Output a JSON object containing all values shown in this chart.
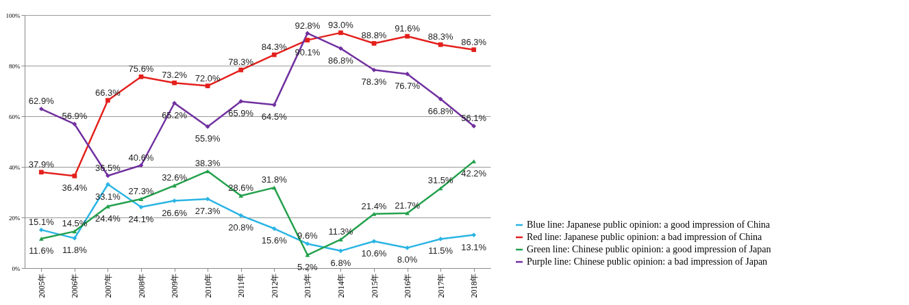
{
  "chart_data": {
    "type": "line",
    "categories": [
      "2005年",
      "2006年",
      "2007年",
      "2008年",
      "2009年",
      "2010年",
      "2011年",
      "2012年",
      "2013年",
      "2014年",
      "2015年",
      "2016年",
      "2017年",
      "2018年"
    ],
    "series": [
      {
        "name": "Blue line: Japanese public opinion: a good impression of China",
        "color": "#2ab4e4",
        "marker": "diamond",
        "values": [
          15.1,
          11.8,
          33.1,
          24.1,
          26.6,
          27.3,
          20.8,
          15.6,
          9.6,
          6.8,
          10.6,
          8.0,
          11.5,
          13.1
        ],
        "value_labels": [
          "15.1%",
          "11.8%",
          "33.1%",
          "24.1%",
          "26.6%",
          "27.3%",
          "20.8%",
          "15.6%",
          "9.6%",
          "6.8%",
          "10.6%",
          "8.0%",
          "11.5%",
          "13.1%"
        ]
      },
      {
        "name": "Red line: Japanese public opinion: a bad impression of China",
        "color": "#e3201c",
        "marker": "square",
        "values": [
          37.9,
          36.4,
          66.3,
          75.6,
          73.2,
          72.0,
          78.3,
          84.3,
          90.1,
          93.0,
          88.8,
          91.6,
          88.3,
          86.3
        ],
        "value_labels": [
          "37.9%",
          "36.4%",
          "66.3%",
          "75.6%",
          "73.2%",
          "72.0%",
          "78.3%",
          "84.3%",
          "90.1%",
          "93.0%",
          "88.8%",
          "91.6%",
          "88.3%",
          "86.3%"
        ]
      },
      {
        "name": "Green line: Chinese public opinion: a good impression of Japan",
        "color": "#23a04c",
        "marker": "triangle",
        "values": [
          11.6,
          14.5,
          24.4,
          27.3,
          32.6,
          38.3,
          28.6,
          31.8,
          5.2,
          11.3,
          21.4,
          21.7,
          31.5,
          42.2
        ],
        "value_labels": [
          "11.6%",
          "14.5%",
          "24.4%",
          "27.3%",
          "32.6%",
          "38.3%",
          "28.6%",
          "31.8%",
          "5.2%",
          "11.3%",
          "21.4%",
          "21.7%",
          "31.5%",
          "42.2%"
        ]
      },
      {
        "name": "Purple line: Chinese public opinion: a bad impression of Japan",
        "color": "#7030a0",
        "marker": "diamond",
        "values": [
          62.9,
          56.9,
          36.5,
          40.6,
          65.2,
          55.9,
          65.9,
          64.5,
          92.8,
          86.8,
          78.3,
          76.7,
          66.8,
          56.1
        ],
        "value_labels": [
          "62.9%",
          "56.9%",
          "36.5%",
          "40.6%",
          "65.2%",
          "55.9%",
          "65.9%",
          "64.5%",
          "92.8%",
          "86.8%",
          "78.3%",
          "76.7%",
          "66.8%",
          "56.1%"
        ]
      }
    ],
    "ylim": [
      0,
      100
    ],
    "yticks": [
      {
        "value": 0,
        "label": "0%"
      },
      {
        "value": 20,
        "label": "20%"
      },
      {
        "value": 40,
        "label": "40%"
      },
      {
        "value": 60,
        "label": "60%"
      },
      {
        "value": 80,
        "label": "80%"
      },
      {
        "value": 100,
        "label": "100%"
      }
    ],
    "grid": "y",
    "legend": "bottom right"
  }
}
